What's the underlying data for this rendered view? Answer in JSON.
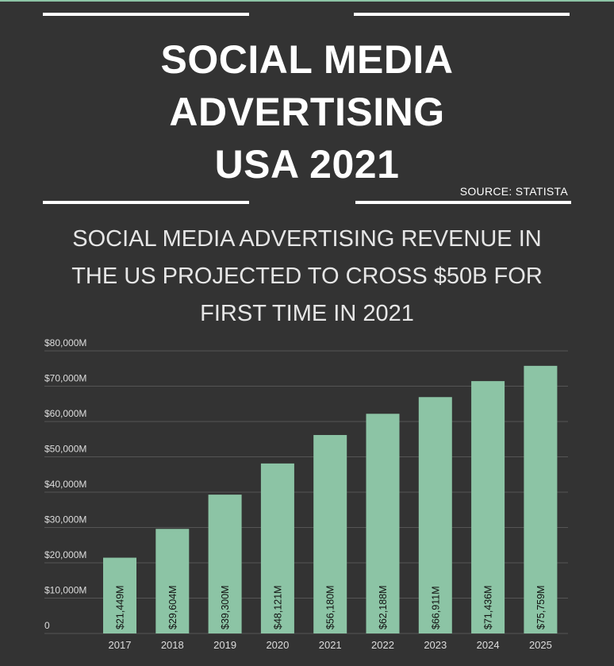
{
  "header": {
    "title_lines": [
      "SOCIAL MEDIA",
      "ADVERTISING",
      "USA 2021"
    ],
    "source": "SOURCE: STATISTA"
  },
  "subtitle_lines": [
    "SOCIAL MEDIA ADVERTISING REVENUE IN",
    "THE US PROJECTED TO CROSS $50B FOR",
    "FIRST TIME IN 2021"
  ],
  "colors": {
    "background": "#333333",
    "bar": "#8cc4a5",
    "text": "#ffffff",
    "grid": "#555555"
  },
  "chart_data": {
    "type": "bar",
    "title": "SOCIAL MEDIA ADVERTISING REVENUE IN THE US PROJECTED TO CROSS $50B FOR FIRST TIME IN 2021",
    "xlabel": "",
    "ylabel": "",
    "categories": [
      "2017",
      "2018",
      "2019",
      "2020",
      "2021",
      "2022",
      "2023",
      "2024",
      "2025"
    ],
    "values": [
      21449,
      29604,
      39300,
      48121,
      56180,
      62188,
      66911,
      71436,
      75759
    ],
    "data_labels": [
      "$21,449M",
      "$29,604M",
      "$39,300M",
      "$48,121M",
      "$56,180M",
      "$62,188M",
      "$66,911M",
      "$71,436M",
      "$75,759M"
    ],
    "ylim": [
      0,
      80000
    ],
    "y_ticks": [
      0,
      10000,
      20000,
      30000,
      40000,
      50000,
      60000,
      70000,
      80000
    ],
    "y_tick_labels": [
      "0",
      "$10,000M",
      "$20,000M",
      "$30,000M",
      "$40,000M",
      "$50,000M",
      "$60,000M",
      "$70,000M",
      "$80,000M"
    ],
    "grid": true,
    "legend": "none"
  }
}
